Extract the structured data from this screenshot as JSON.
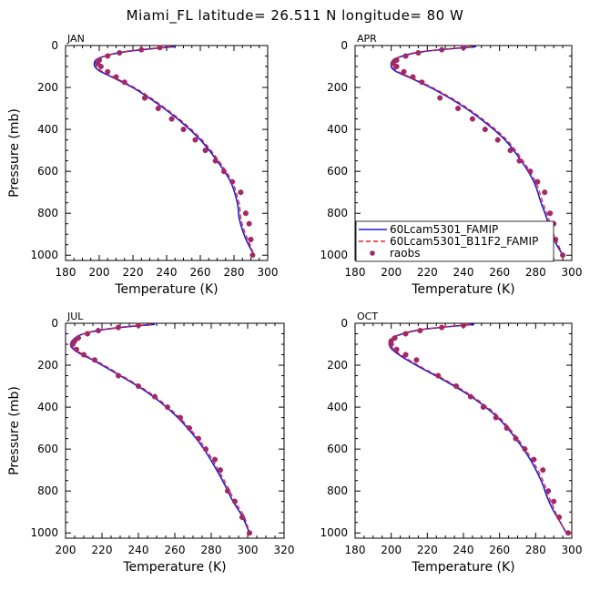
{
  "figure": {
    "title": "Miami_FL  latitude= 26.511 N longitude= 80 W"
  },
  "legend": {
    "entries": [
      {
        "label": "60Lcam5301_FAMIP",
        "color": "#1a1adb",
        "style": "solid"
      },
      {
        "label": "60Lcam5301_B11F2_FAMIP",
        "color": "#e8202a",
        "style": "dashed"
      },
      {
        "label": "raobs",
        "color": "#9b2b6e",
        "style": "marker"
      }
    ]
  },
  "chart_data": [
    {
      "type": "line",
      "panel": "JAN",
      "xlabel": "Temperature (K)",
      "ylabel": "Pressure (mb)",
      "xlim": [
        180,
        300
      ],
      "ylim": [
        1025,
        0
      ],
      "xticks": [
        180,
        200,
        220,
        240,
        260,
        280,
        300
      ],
      "yticks": [
        0,
        200,
        400,
        600,
        800,
        1000
      ],
      "y_inverted": true,
      "series": [
        {
          "name": "60Lcam5301_FAMIP",
          "x": [
            245,
            215,
            200,
            197,
            200,
            210,
            222,
            235,
            248,
            260,
            270,
            278,
            282,
            283,
            285,
            288,
            292
          ],
          "y": [
            5,
            30,
            60,
            90,
            120,
            160,
            210,
            280,
            360,
            450,
            550,
            650,
            750,
            820,
            880,
            940,
            1000
          ]
        },
        {
          "name": "60Lcam5301_B11F2_FAMIP",
          "x": [
            243,
            214,
            200,
            198,
            201,
            211,
            223,
            236,
            249,
            261,
            271,
            279,
            283,
            284,
            286,
            289,
            292
          ],
          "y": [
            5,
            30,
            60,
            90,
            120,
            160,
            210,
            280,
            360,
            450,
            550,
            650,
            750,
            820,
            880,
            940,
            1000
          ]
        },
        {
          "name": "raobs",
          "x": [
            236,
            225,
            212,
            205,
            200,
            199,
            201,
            205,
            210,
            215,
            227,
            235,
            243,
            250,
            257,
            263,
            269,
            274,
            279,
            284,
            287,
            289,
            290,
            291
          ],
          "y": [
            10,
            20,
            35,
            50,
            70,
            85,
            100,
            125,
            150,
            175,
            250,
            300,
            350,
            400,
            450,
            500,
            550,
            600,
            650,
            700,
            800,
            850,
            925,
            1000
          ]
        }
      ]
    },
    {
      "type": "line",
      "panel": "APR",
      "xlabel": "Temperature (K)",
      "ylabel": "Pressure (mb)",
      "xlim": [
        180,
        300
      ],
      "ylim": [
        1025,
        0
      ],
      "xticks": [
        180,
        200,
        220,
        240,
        260,
        280,
        300
      ],
      "yticks": [
        0,
        200,
        400,
        600,
        800,
        1000
      ],
      "y_inverted": true,
      "series": [
        {
          "name": "60Lcam5301_FAMIP",
          "x": [
            247,
            217,
            203,
            200,
            202,
            212,
            224,
            238,
            251,
            263,
            272,
            279,
            283,
            286,
            288,
            291,
            295
          ],
          "y": [
            5,
            30,
            60,
            90,
            120,
            160,
            210,
            280,
            360,
            450,
            550,
            650,
            750,
            820,
            880,
            940,
            1000
          ]
        },
        {
          "name": "60Lcam5301_B11F2_FAMIP",
          "x": [
            245,
            216,
            203,
            201,
            203,
            213,
            225,
            239,
            252,
            264,
            273,
            280,
            284,
            287,
            289,
            292,
            295
          ],
          "y": [
            5,
            30,
            60,
            90,
            120,
            160,
            210,
            280,
            360,
            450,
            550,
            650,
            750,
            820,
            880,
            940,
            1000
          ]
        },
        {
          "name": "raobs",
          "x": [
            240,
            228,
            215,
            208,
            203,
            201,
            203,
            207,
            212,
            217,
            227,
            237,
            245,
            252,
            259,
            266,
            271,
            277,
            281,
            285,
            288,
            290,
            291,
            295
          ],
          "y": [
            10,
            20,
            35,
            50,
            70,
            85,
            100,
            125,
            150,
            175,
            250,
            300,
            350,
            400,
            450,
            500,
            550,
            600,
            650,
            700,
            800,
            850,
            925,
            1000
          ]
        }
      ]
    },
    {
      "type": "line",
      "panel": "JUL",
      "xlabel": "Temperature (K)",
      "ylabel": "Pressure (mb)",
      "xlim": [
        200,
        320
      ],
      "ylim": [
        1025,
        0
      ],
      "xticks": [
        200,
        220,
        240,
        260,
        280,
        300,
        320
      ],
      "yticks": [
        0,
        200,
        400,
        600,
        800,
        1000
      ],
      "y_inverted": true,
      "series": [
        {
          "name": "60Lcam5301_FAMIP",
          "x": [
            249,
            225,
            210,
            204,
            203,
            207,
            216,
            230,
            245,
            258,
            268,
            276,
            283,
            288,
            292,
            297,
            301
          ],
          "y": [
            5,
            25,
            50,
            80,
            110,
            140,
            180,
            250,
            330,
            420,
            510,
            600,
            700,
            780,
            850,
            920,
            1000
          ]
        },
        {
          "name": "60Lcam5301_B11F2_FAMIP",
          "x": [
            247,
            224,
            210,
            205,
            204,
            208,
            217,
            231,
            246,
            259,
            269,
            277,
            284,
            289,
            293,
            298,
            301
          ],
          "y": [
            5,
            25,
            50,
            80,
            110,
            140,
            180,
            250,
            330,
            420,
            510,
            600,
            700,
            780,
            850,
            920,
            1000
          ]
        },
        {
          "name": "raobs",
          "x": [
            240,
            229,
            218,
            212,
            207,
            205,
            204,
            206,
            210,
            216,
            229,
            240,
            249,
            256,
            263,
            268,
            273,
            277,
            282,
            285,
            289,
            293,
            297,
            301
          ],
          "y": [
            10,
            20,
            35,
            50,
            70,
            85,
            100,
            125,
            150,
            175,
            250,
            300,
            350,
            400,
            450,
            500,
            550,
            600,
            650,
            700,
            800,
            850,
            925,
            1000
          ]
        }
      ]
    },
    {
      "type": "line",
      "panel": "OCT",
      "xlabel": "Temperature (K)",
      "ylabel": "Pressure (mb)",
      "xlim": [
        180,
        300
      ],
      "ylim": [
        1025,
        0
      ],
      "xticks": [
        180,
        200,
        220,
        240,
        260,
        280,
        300
      ],
      "yticks": [
        0,
        200,
        400,
        600,
        800,
        1000
      ],
      "y_inverted": true,
      "series": [
        {
          "name": "60Lcam5301_FAMIP",
          "x": [
            246,
            217,
            203,
            199,
            200,
            206,
            216,
            231,
            246,
            259,
            269,
            277,
            283,
            286,
            289,
            293,
            297
          ],
          "y": [
            5,
            30,
            60,
            90,
            120,
            160,
            210,
            280,
            360,
            450,
            550,
            650,
            750,
            820,
            880,
            940,
            1000
          ]
        },
        {
          "name": "60Lcam5301_B11F2_FAMIP",
          "x": [
            244,
            216,
            203,
            200,
            201,
            207,
            217,
            232,
            247,
            260,
            270,
            278,
            284,
            287,
            290,
            293,
            297
          ],
          "y": [
            5,
            30,
            60,
            90,
            120,
            160,
            210,
            280,
            360,
            450,
            550,
            650,
            750,
            820,
            880,
            940,
            1000
          ]
        },
        {
          "name": "raobs",
          "x": [
            240,
            228,
            216,
            208,
            202,
            200,
            200,
            203,
            208,
            214,
            226,
            236,
            244,
            251,
            258,
            264,
            269,
            274,
            279,
            284,
            287,
            290,
            293,
            298
          ],
          "y": [
            10,
            20,
            35,
            50,
            70,
            85,
            100,
            125,
            150,
            175,
            250,
            300,
            350,
            400,
            450,
            500,
            550,
            600,
            650,
            700,
            800,
            850,
            925,
            1000
          ]
        }
      ]
    }
  ]
}
